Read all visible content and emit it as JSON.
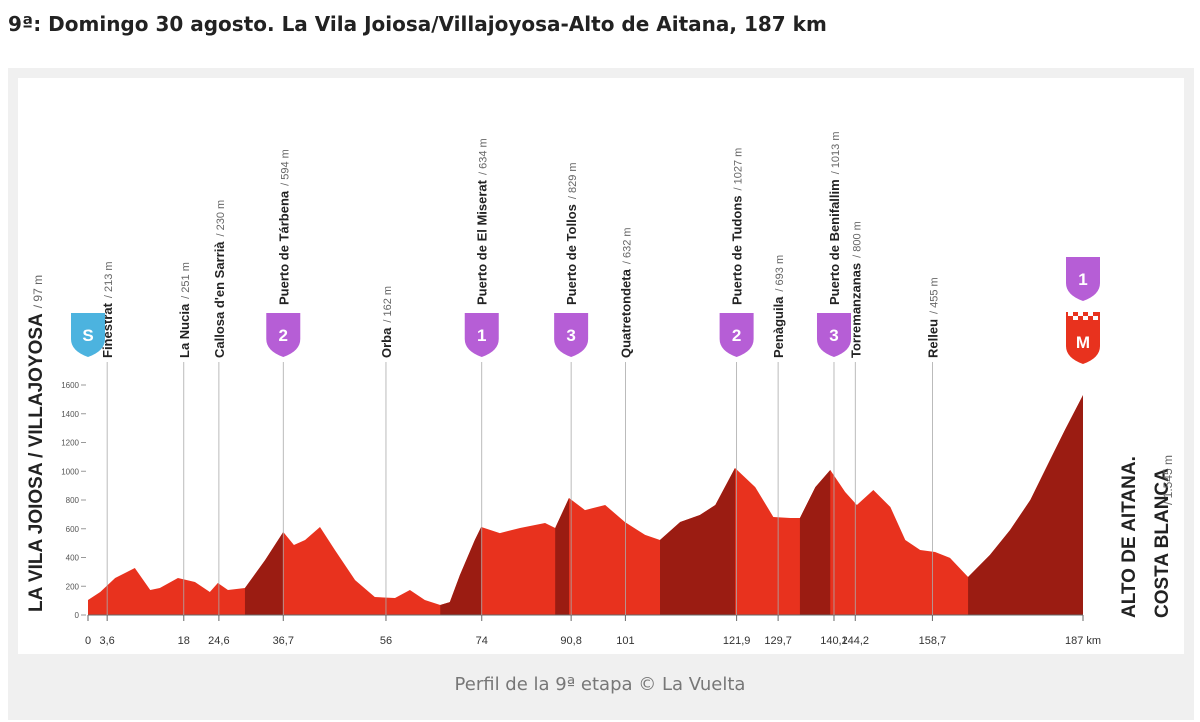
{
  "heading": "9ª: Domingo 30 agosto. La Vila Joiosa/Villajoyosa-Alto de Aitana, 187 km",
  "caption": "Perfil de la 9ª etapa © La Vuelta",
  "chart_data": {
    "type": "area",
    "color": "#e8321e",
    "climb_color": "#9b1c12",
    "x": [
      0,
      2.3,
      5.1,
      8.8,
      11.7,
      13.5,
      16.9,
      20.1,
      22.9,
      24.4,
      26.3,
      29.5,
      33.3,
      36.7,
      38.7,
      40.8,
      43.6,
      46.4,
      50.2,
      53.9,
      57.7,
      60.5,
      63.3,
      66.2,
      68,
      69.9,
      72.7,
      73.9,
      77.4,
      81.2,
      85.9,
      87.8,
      90.4,
      93.4,
      97.2,
      100.9,
      104.7,
      107.5,
      111.3,
      115,
      117.9,
      121.6,
      125.4,
      128.8,
      132,
      133.8,
      136.7,
      139.5,
      142.3,
      144.5,
      147.6,
      150.8,
      153.6,
      156.4,
      159.2,
      162,
      165.4,
      169.5,
      173.3,
      177.1,
      180.8,
      183.6,
      187
    ],
    "values": [
      104,
      160,
      257,
      327,
      174,
      188,
      257,
      230,
      160,
      223,
      174,
      188,
      383,
      577,
      487,
      522,
      612,
      452,
      243,
      125,
      118,
      174,
      104,
      70,
      90,
      278,
      522,
      612,
      570,
      605,
      640,
      605,
      814,
      730,
      765,
      647,
      557,
      522,
      647,
      696,
      765,
      1023,
      890,
      682,
      675,
      675,
      890,
      1009,
      856,
      765,
      870,
      751,
      522,
      452,
      438,
      397,
      264,
      417,
      591,
      800,
      1078,
      1287,
      1530
    ],
    "climbs": [
      {
        "from": 29.5,
        "to": 36.7
      },
      {
        "from": 66.2,
        "to": 73.9
      },
      {
        "from": 87.8,
        "to": 90.4
      },
      {
        "from": 107.5,
        "to": 121.6
      },
      {
        "from": 133.8,
        "to": 139.5
      },
      {
        "from": 165.4,
        "to": 187
      }
    ],
    "xlim": [
      0,
      187
    ],
    "ylim": [
      0,
      1700
    ],
    "yticks": [
      0,
      200,
      400,
      600,
      800,
      1000,
      1200,
      1400,
      1600
    ],
    "xticks": [
      0,
      {
        "value": 3.6,
        "label": "3,6"
      },
      18,
      {
        "value": 24.6,
        "label": "24,6"
      },
      {
        "value": 36.7,
        "label": "36,7"
      },
      56,
      74,
      {
        "value": 90.8,
        "label": "90,8"
      },
      101,
      {
        "value": 121.9,
        "label": "121,9"
      },
      {
        "value": 129.7,
        "label": "129,7"
      },
      {
        "value": 140.2,
        "label": "140,2"
      },
      {
        "value": 144.2,
        "label": "144,2"
      },
      {
        "value": 158.7,
        "label": "158,7"
      },
      {
        "value": 187,
        "label": "187 km"
      }
    ],
    "annotations": [
      {
        "name": "Finestrat",
        "elevation": "/ 213 m"
      },
      {
        "name": "La Nucia",
        "elevation": "/ 251 m"
      },
      {
        "name": "Callosa d'en Sarrià",
        "elevation": "/ 230 m"
      },
      {
        "name": "Puerto de Tárbena",
        "elevation": "/ 594 m",
        "category": "2"
      },
      {
        "name": "Orba",
        "elevation": "/ 162 m"
      },
      {
        "name": "Puerto de El Miserat",
        "elevation": "/ 634 m",
        "category": "1"
      },
      {
        "name": "Puerto de Tollos",
        "elevation": "/ 829 m",
        "category": "3"
      },
      {
        "name": "Quatretondeta",
        "elevation": "/ 632 m"
      },
      {
        "name": "Puerto de Tudons",
        "elevation": "/ 1027 m",
        "category": "2"
      },
      {
        "name": "Penàguila",
        "elevation": "/ 693 m"
      },
      {
        "name": "Puerto de Benifallim",
        "elevation": "/ 1013 m",
        "category": "3"
      },
      {
        "name": "Torremanzanas",
        "elevation": "/ 800 m"
      },
      {
        "name": "Relleu",
        "elevation": "/ 455 m"
      }
    ],
    "start": {
      "name": "LA VILA JOIOSA / VILLAJOYOSA",
      "elevation": "/ 97 m",
      "badge": "S"
    },
    "finish": {
      "name": [
        "ALTO DE AITANA.",
        "COSTA BLANCA"
      ],
      "elevation": "/ 1.545 m",
      "category": "1",
      "badge": "M"
    }
  }
}
